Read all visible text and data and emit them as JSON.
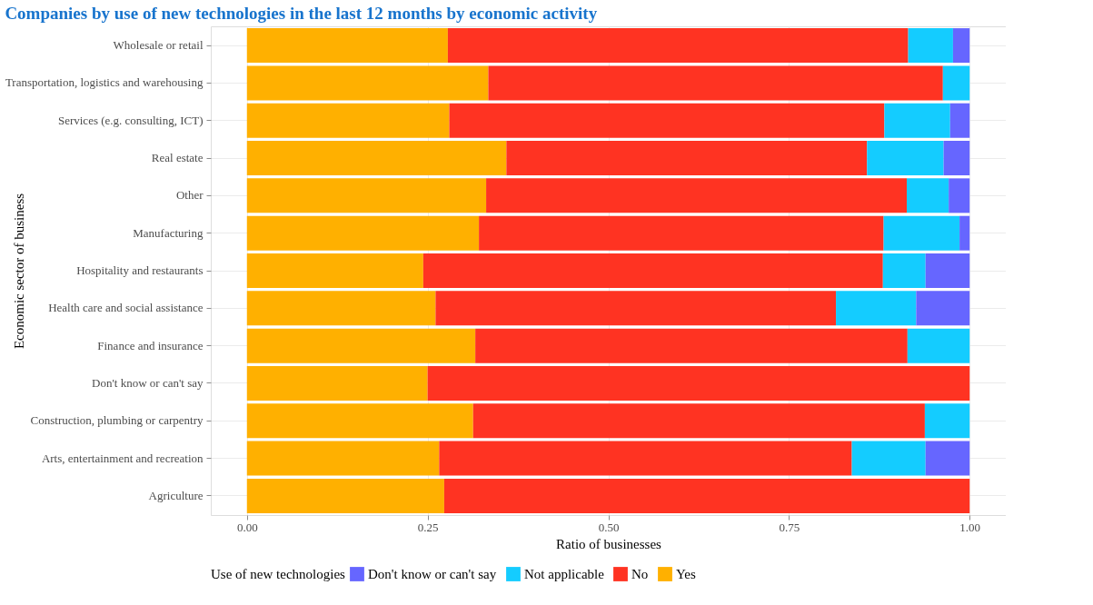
{
  "chart_data": {
    "type": "bar",
    "orientation": "horizontal",
    "stacked": true,
    "title": "Companies by use of new technologies in the last 12 months\nby economic activity",
    "xlabel": "Ratio of businesses",
    "ylabel": "Economic sector of business",
    "legend_title": "Use of new technologies",
    "categories": [
      "Wholesale or retail",
      "Transportation, logistics and warehousing",
      "Services (e.g. consulting, ICT)",
      "Real estate",
      "Other",
      "Manufacturing",
      "Hospitality and restaurants",
      "Health care and social assistance",
      "Finance and insurance",
      "Don't know or can't say",
      "Construction, plumbing or carpentry",
      "Arts, entertainment and recreation",
      "Agriculture"
    ],
    "series": [
      {
        "name": "Yes",
        "color": "#ffb000",
        "values": [
          0.278,
          0.334,
          0.28,
          0.359,
          0.331,
          0.321,
          0.244,
          0.261,
          0.316,
          0.25,
          0.313,
          0.266,
          0.273
        ]
      },
      {
        "name": "No",
        "color": "#ff3322",
        "values": [
          0.637,
          0.629,
          0.602,
          0.499,
          0.582,
          0.56,
          0.636,
          0.554,
          0.598,
          0.75,
          0.625,
          0.571,
          0.727
        ]
      },
      {
        "name": "Not applicable",
        "color": "#14ccff",
        "values": [
          0.062,
          0.037,
          0.091,
          0.106,
          0.058,
          0.105,
          0.059,
          0.111,
          0.086,
          null,
          0.062,
          0.102,
          null
        ]
      },
      {
        "name": "Don't know or can't say",
        "color": "#6666ff",
        "values": [
          0.023,
          null,
          0.027,
          0.036,
          0.029,
          0.014,
          0.061,
          0.074,
          null,
          null,
          null,
          0.061,
          null
        ]
      }
    ],
    "xlim": [
      -0.05,
      1.05
    ],
    "xticks": [
      {
        "value": 0,
        "label": "0.00"
      },
      {
        "value": 0.25,
        "label": "0.25"
      },
      {
        "value": 0.5,
        "label": "0.50"
      },
      {
        "value": 0.75,
        "label": "0.75"
      },
      {
        "value": 1,
        "label": "1.00"
      }
    ],
    "grid": true,
    "legend": "bottom"
  }
}
